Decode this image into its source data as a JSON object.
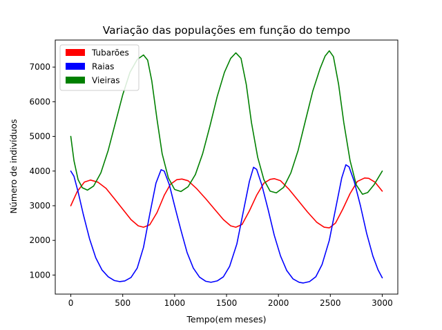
{
  "chart_data": {
    "type": "line",
    "title": "Variação das populações em função do tempo",
    "xlabel": "Tempo(em meses)",
    "ylabel": "Número de indivíduos",
    "xlim": [
      -150,
      3150
    ],
    "ylim": [
      450,
      7780
    ],
    "xticks": [
      0,
      500,
      1000,
      1500,
      2000,
      2500,
      3000
    ],
    "yticks": [
      1000,
      2000,
      3000,
      4000,
      5000,
      6000,
      7000
    ],
    "grid": false,
    "legend_position": "top-left",
    "series": [
      {
        "name": "Tubarões",
        "color": "#ff0000",
        "points": [
          [
            0,
            3000
          ],
          [
            60,
            3400
          ],
          [
            130,
            3680
          ],
          [
            190,
            3740
          ],
          [
            260,
            3680
          ],
          [
            340,
            3500
          ],
          [
            420,
            3200
          ],
          [
            500,
            2900
          ],
          [
            580,
            2600
          ],
          [
            650,
            2420
          ],
          [
            700,
            2380
          ],
          [
            760,
            2450
          ],
          [
            830,
            2800
          ],
          [
            900,
            3300
          ],
          [
            960,
            3620
          ],
          [
            1020,
            3750
          ],
          [
            1070,
            3770
          ],
          [
            1130,
            3720
          ],
          [
            1210,
            3500
          ],
          [
            1300,
            3200
          ],
          [
            1390,
            2880
          ],
          [
            1470,
            2600
          ],
          [
            1540,
            2420
          ],
          [
            1590,
            2380
          ],
          [
            1650,
            2460
          ],
          [
            1720,
            2850
          ],
          [
            1790,
            3300
          ],
          [
            1860,
            3650
          ],
          [
            1920,
            3760
          ],
          [
            1960,
            3780
          ],
          [
            2020,
            3720
          ],
          [
            2100,
            3480
          ],
          [
            2190,
            3150
          ],
          [
            2280,
            2820
          ],
          [
            2370,
            2520
          ],
          [
            2440,
            2380
          ],
          [
            2490,
            2360
          ],
          [
            2550,
            2500
          ],
          [
            2620,
            2900
          ],
          [
            2690,
            3350
          ],
          [
            2760,
            3700
          ],
          [
            2830,
            3800
          ],
          [
            2870,
            3790
          ],
          [
            2930,
            3680
          ],
          [
            3000,
            3420
          ]
        ]
      },
      {
        "name": "Raias",
        "color": "#0000ff",
        "points": [
          [
            0,
            4000
          ],
          [
            30,
            3850
          ],
          [
            70,
            3400
          ],
          [
            120,
            2750
          ],
          [
            180,
            2050
          ],
          [
            240,
            1500
          ],
          [
            300,
            1150
          ],
          [
            360,
            950
          ],
          [
            420,
            840
          ],
          [
            470,
            810
          ],
          [
            520,
            830
          ],
          [
            580,
            930
          ],
          [
            640,
            1200
          ],
          [
            700,
            1800
          ],
          [
            760,
            2750
          ],
          [
            820,
            3650
          ],
          [
            870,
            4040
          ],
          [
            900,
            4000
          ],
          [
            950,
            3600
          ],
          [
            1000,
            3000
          ],
          [
            1060,
            2300
          ],
          [
            1120,
            1650
          ],
          [
            1180,
            1200
          ],
          [
            1240,
            940
          ],
          [
            1300,
            820
          ],
          [
            1350,
            790
          ],
          [
            1410,
            830
          ],
          [
            1470,
            950
          ],
          [
            1530,
            1250
          ],
          [
            1600,
            1900
          ],
          [
            1660,
            2800
          ],
          [
            1720,
            3700
          ],
          [
            1760,
            4110
          ],
          [
            1790,
            4050
          ],
          [
            1840,
            3600
          ],
          [
            1900,
            2900
          ],
          [
            1960,
            2150
          ],
          [
            2020,
            1550
          ],
          [
            2080,
            1130
          ],
          [
            2140,
            890
          ],
          [
            2200,
            790
          ],
          [
            2240,
            770
          ],
          [
            2300,
            810
          ],
          [
            2360,
            950
          ],
          [
            2420,
            1300
          ],
          [
            2490,
            2000
          ],
          [
            2550,
            2900
          ],
          [
            2610,
            3800
          ],
          [
            2650,
            4180
          ],
          [
            2680,
            4120
          ],
          [
            2730,
            3700
          ],
          [
            2790,
            3000
          ],
          [
            2850,
            2200
          ],
          [
            2910,
            1550
          ],
          [
            2960,
            1150
          ],
          [
            3000,
            920
          ]
        ]
      },
      {
        "name": "Vieiras",
        "color": "#008000",
        "points": [
          [
            0,
            5000
          ],
          [
            30,
            4300
          ],
          [
            70,
            3750
          ],
          [
            110,
            3520
          ],
          [
            160,
            3450
          ],
          [
            220,
            3570
          ],
          [
            290,
            3950
          ],
          [
            360,
            4600
          ],
          [
            430,
            5400
          ],
          [
            500,
            6200
          ],
          [
            570,
            6850
          ],
          [
            640,
            7220
          ],
          [
            700,
            7350
          ],
          [
            740,
            7200
          ],
          [
            780,
            6600
          ],
          [
            830,
            5500
          ],
          [
            880,
            4500
          ],
          [
            940,
            3800
          ],
          [
            1000,
            3470
          ],
          [
            1060,
            3410
          ],
          [
            1130,
            3550
          ],
          [
            1200,
            3900
          ],
          [
            1270,
            4500
          ],
          [
            1340,
            5300
          ],
          [
            1410,
            6150
          ],
          [
            1480,
            6850
          ],
          [
            1540,
            7250
          ],
          [
            1590,
            7410
          ],
          [
            1640,
            7250
          ],
          [
            1690,
            6500
          ],
          [
            1740,
            5400
          ],
          [
            1800,
            4400
          ],
          [
            1860,
            3750
          ],
          [
            1920,
            3420
          ],
          [
            1980,
            3370
          ],
          [
            2050,
            3530
          ],
          [
            2120,
            3950
          ],
          [
            2190,
            4600
          ],
          [
            2260,
            5450
          ],
          [
            2330,
            6300
          ],
          [
            2400,
            6950
          ],
          [
            2450,
            7320
          ],
          [
            2490,
            7470
          ],
          [
            2530,
            7300
          ],
          [
            2580,
            6500
          ],
          [
            2630,
            5400
          ],
          [
            2690,
            4300
          ],
          [
            2750,
            3600
          ],
          [
            2810,
            3330
          ],
          [
            2860,
            3380
          ],
          [
            2920,
            3600
          ],
          [
            3000,
            4000
          ]
        ]
      }
    ]
  }
}
